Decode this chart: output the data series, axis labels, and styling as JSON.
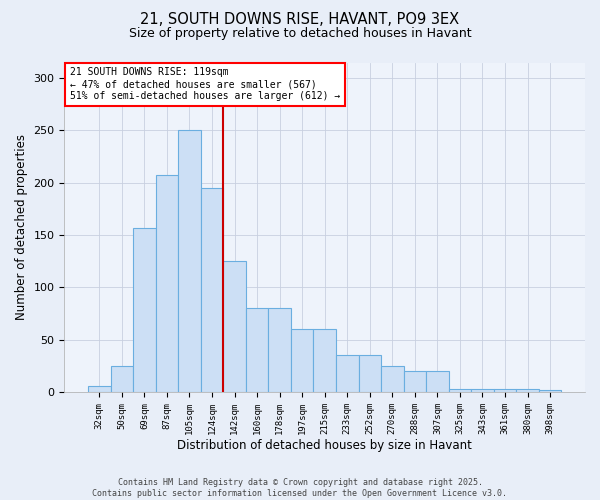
{
  "title_line1": "21, SOUTH DOWNS RISE, HAVANT, PO9 3EX",
  "title_line2": "Size of property relative to detached houses in Havant",
  "xlabel": "Distribution of detached houses by size in Havant",
  "ylabel": "Number of detached properties",
  "categories": [
    "32sqm",
    "50sqm",
    "69sqm",
    "87sqm",
    "105sqm",
    "124sqm",
    "142sqm",
    "160sqm",
    "178sqm",
    "197sqm",
    "215sqm",
    "233sqm",
    "252sqm",
    "270sqm",
    "288sqm",
    "307sqm",
    "325sqm",
    "343sqm",
    "361sqm",
    "380sqm",
    "398sqm"
  ],
  "values": [
    6,
    25,
    157,
    207,
    250,
    195,
    125,
    80,
    80,
    60,
    60,
    35,
    35,
    25,
    20,
    20,
    3,
    3,
    3,
    3,
    2
  ],
  "bar_color": "#ccdff5",
  "bar_edge_color": "#6aaee0",
  "vline_color": "#cc0000",
  "vline_x": 5.5,
  "annotation_text": "21 SOUTH DOWNS RISE: 119sqm\n← 47% of detached houses are smaller (567)\n51% of semi-detached houses are larger (612) →",
  "ylim": [
    0,
    315
  ],
  "yticks": [
    0,
    50,
    100,
    150,
    200,
    250,
    300
  ],
  "footer": "Contains HM Land Registry data © Crown copyright and database right 2025.\nContains public sector information licensed under the Open Government Licence v3.0.",
  "bg_color": "#e8eef8",
  "plot_bg_color": "#eef3fb",
  "grid_color": "#c8d0e0"
}
